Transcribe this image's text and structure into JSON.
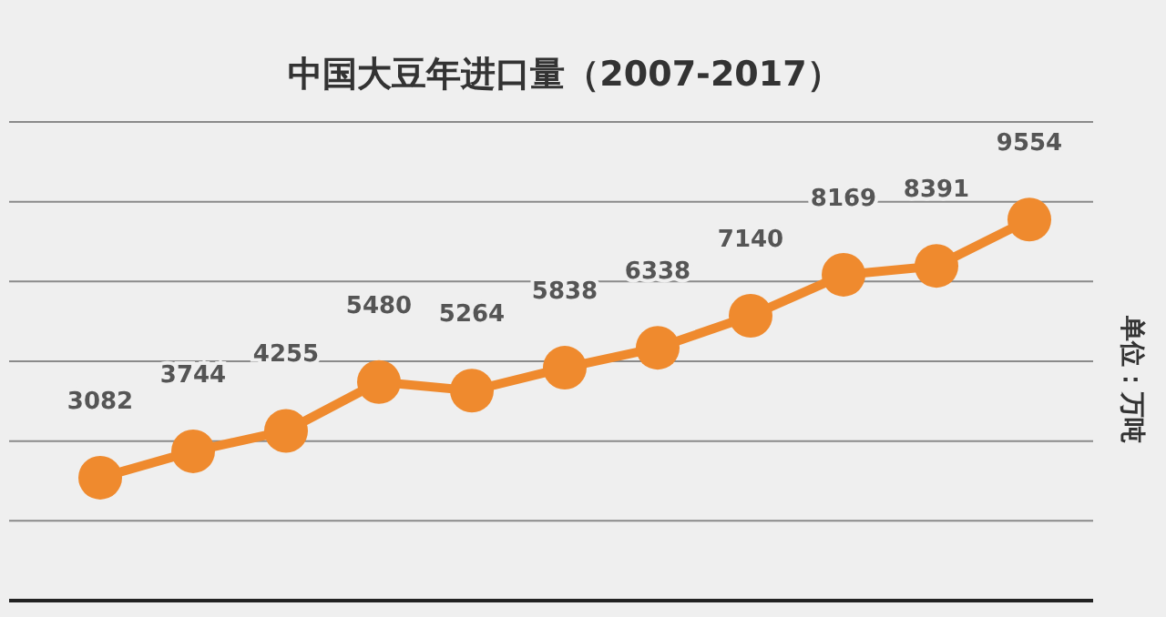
{
  "chart_data": {
    "type": "line",
    "title": "中国大豆年进口量（2007-2017）",
    "ylabel": "单位：万吨",
    "categories": [
      null,
      null,
      null,
      null,
      null,
      null,
      null,
      null,
      null,
      null,
      null
    ],
    "series": [
      {
        "color": "#ef8a2e",
        "values": [
          3082,
          3744,
          4255,
          5480,
          5264,
          5838,
          6338,
          7140,
          8169,
          8391,
          9554
        ]
      }
    ],
    "ylim": [
      0,
      12000
    ],
    "yticks": [
      {
        "value": 0,
        "label": null
      },
      {
        "value": 2000,
        "label": null
      },
      {
        "value": 4000,
        "label": null
      },
      {
        "value": 6000,
        "label": null
      },
      {
        "value": 8000,
        "label": null
      },
      {
        "value": 10000,
        "label": null
      },
      {
        "value": 12000,
        "label": null
      }
    ],
    "grid": "y",
    "data_labels": true,
    "marker": "circle"
  }
}
